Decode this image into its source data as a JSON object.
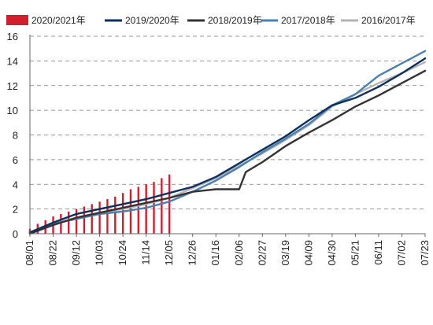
{
  "chart_data": {
    "type": "bar+line",
    "title": "",
    "xlabel": "",
    "ylabel": "",
    "ylim": [
      0,
      16
    ],
    "yticks": [
      0,
      2,
      4,
      6,
      8,
      10,
      12,
      14,
      16
    ],
    "xlim": [
      0,
      357
    ],
    "x_unit": "days since 08/01",
    "xtick_labels": [
      "08/01",
      "08/22",
      "09/12",
      "10/03",
      "10/24",
      "11/14",
      "12/05",
      "12/26",
      "01/16",
      "02/06",
      "02/27",
      "03/19",
      "04/09",
      "04/30",
      "05/21",
      "06/11",
      "07/02",
      "07/23"
    ],
    "grid": "horizontal dashed",
    "legend_position": "top",
    "series": [
      {
        "name": "2020/2021年",
        "kind": "bar",
        "color": "#d0202e",
        "x": [
          0,
          7,
          14,
          21,
          28,
          35,
          42,
          49,
          56,
          63,
          70,
          77,
          84,
          91,
          98,
          105,
          112,
          119,
          126
        ],
        "values": [
          0.4,
          0.8,
          1.1,
          1.4,
          1.6,
          1.8,
          2.0,
          2.2,
          2.4,
          2.6,
          2.8,
          3.0,
          3.3,
          3.6,
          3.8,
          4.0,
          4.2,
          4.5,
          4.8
        ]
      },
      {
        "name": "2019/2020年",
        "kind": "line",
        "color": "#0e2e5c",
        "x": [
          0,
          21,
          42,
          63,
          84,
          105,
          126,
          147,
          168,
          189,
          210,
          231,
          252,
          273,
          294,
          315,
          336,
          357
        ],
        "values": [
          0.1,
          0.9,
          1.6,
          2.0,
          2.4,
          2.8,
          3.3,
          3.8,
          4.6,
          5.7,
          6.8,
          7.9,
          9.2,
          10.4,
          11.0,
          11.9,
          13.0,
          14.2
        ]
      },
      {
        "name": "2018/2019年",
        "kind": "line",
        "color": "#333333",
        "x": [
          0,
          21,
          42,
          63,
          84,
          105,
          126,
          147,
          168,
          180,
          189,
          195,
          210,
          231,
          252,
          273,
          294,
          315,
          336,
          357
        ],
        "values": [
          0.0,
          0.7,
          1.3,
          1.7,
          2.1,
          2.5,
          2.9,
          3.4,
          3.6,
          3.6,
          3.6,
          5.0,
          5.8,
          7.1,
          8.2,
          9.2,
          10.3,
          11.2,
          12.2,
          13.2
        ]
      },
      {
        "name": "2017/2018年",
        "kind": "line",
        "color": "#4a7fae",
        "x": [
          0,
          21,
          42,
          63,
          84,
          105,
          126,
          147,
          168,
          189,
          210,
          231,
          252,
          273,
          294,
          315,
          336,
          357
        ],
        "values": [
          0.1,
          0.8,
          1.2,
          1.6,
          1.8,
          2.1,
          2.6,
          3.4,
          4.3,
          5.4,
          6.6,
          7.7,
          8.9,
          10.4,
          11.3,
          12.8,
          13.8,
          14.8
        ]
      },
      {
        "name": "2016/2017年",
        "kind": "line",
        "color": "#b4b4b4",
        "x": [
          0,
          21,
          42,
          63,
          84,
          105,
          126,
          147,
          168,
          189,
          210,
          231,
          252,
          273,
          294,
          315,
          336,
          357
        ],
        "values": [
          0.1,
          0.8,
          1.3,
          1.7,
          2.0,
          2.4,
          2.9,
          3.7,
          4.5,
          5.5,
          6.5,
          7.6,
          8.8,
          10.3,
          11.3,
          12.2,
          13.0,
          13.9
        ]
      }
    ]
  }
}
